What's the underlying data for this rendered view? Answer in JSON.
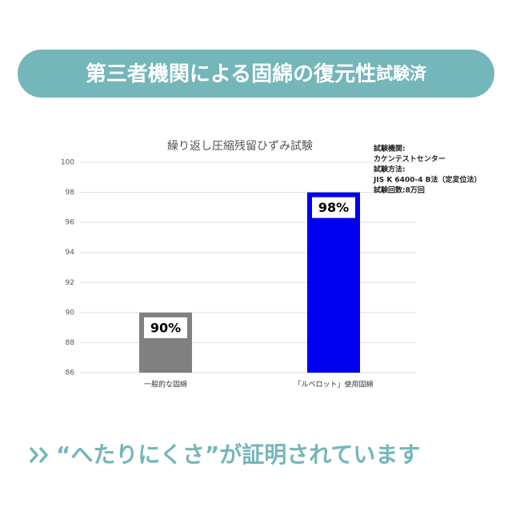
{
  "header": {
    "title": "第三者機関による固綿の復元性",
    "suffix": "試験済"
  },
  "chart_data": {
    "type": "bar",
    "title": "繰り返し圧縮残留ひずみ試験",
    "categories": [
      "一般的な固綿",
      "「ルベロット」使用固綿"
    ],
    "values": [
      90,
      98
    ],
    "value_labels": [
      "90%",
      "98%"
    ],
    "colors": [
      "#808080",
      "#0000f0"
    ],
    "ylim": [
      86,
      100
    ],
    "yticks": [
      86,
      88,
      90,
      92,
      94,
      96,
      98,
      100
    ],
    "grid": true,
    "annotations": [
      "試験機関:",
      "カケンテストセンター",
      "試験方法:",
      "JIS K 6400-4 B法（定変位法）",
      "試験回数:8万回"
    ]
  },
  "footer": {
    "text": "“へたりにくさ”が証明されています"
  }
}
